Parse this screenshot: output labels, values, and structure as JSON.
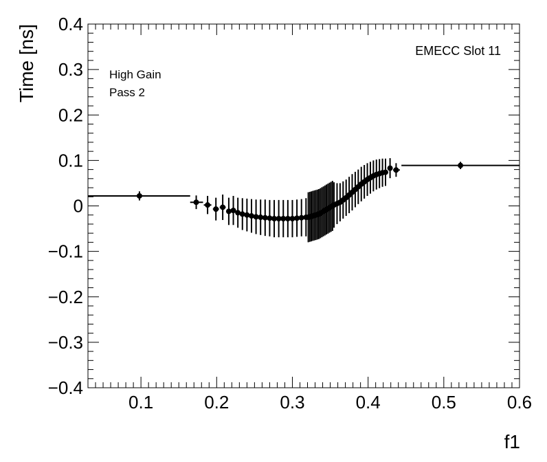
{
  "chart_data": {
    "type": "scatter",
    "xlabel": "f1",
    "ylabel": "Time [ns]",
    "xlim": [
      0.03,
      0.6
    ],
    "ylim": [
      -0.4,
      0.4
    ],
    "x_ticks": [
      0.1,
      0.2,
      0.3,
      0.4,
      0.5,
      0.6
    ],
    "x_tick_labels": [
      "0.1",
      "0.2",
      "0.3",
      "0.4",
      "0.5",
      "0.6"
    ],
    "y_ticks": [
      -0.4,
      -0.3,
      -0.2,
      -0.1,
      0,
      0.1,
      0.2,
      0.3,
      0.4
    ],
    "y_tick_labels": [
      "−0.4",
      "−0.3",
      "−0.2",
      "−0.1",
      "0",
      "0.1",
      "0.2",
      "0.3",
      "0.4"
    ],
    "annotations": [
      "High Gain",
      "Pass 2"
    ],
    "label_right": "EMECC Slot 11",
    "grid": false,
    "marker_color": "#000000",
    "points": [
      {
        "x": 0.098,
        "y": 0.022,
        "ey": 0.01,
        "xlo": 0.03,
        "xhi": 0.165
      },
      {
        "x": 0.173,
        "y": 0.008,
        "ey": 0.015,
        "xlo": 0.165,
        "xhi": 0.182
      },
      {
        "x": 0.188,
        "y": 0.002,
        "ey": 0.02,
        "xlo": 0.183,
        "xhi": 0.193
      },
      {
        "x": 0.199,
        "y": -0.007,
        "ey": 0.025,
        "xlo": 0.195,
        "xhi": 0.203
      },
      {
        "x": 0.208,
        "y": -0.003,
        "ey": 0.028,
        "xlo": 0.204,
        "xhi": 0.212
      },
      {
        "x": 0.216,
        "y": -0.012,
        "ey": 0.03,
        "xlo": 0.213,
        "xhi": 0.219
      },
      {
        "x": 0.222,
        "y": -0.01,
        "ey": 0.032,
        "xlo": 0.22,
        "xhi": 0.225
      },
      {
        "x": 0.228,
        "y": -0.015,
        "ey": 0.033,
        "xlo": 0.226,
        "xhi": 0.231
      },
      {
        "x": 0.234,
        "y": -0.018,
        "ey": 0.035,
        "xlo": 0.232,
        "xhi": 0.237
      },
      {
        "x": 0.24,
        "y": -0.02,
        "ey": 0.036,
        "xlo": 0.238,
        "xhi": 0.243
      },
      {
        "x": 0.246,
        "y": -0.022,
        "ey": 0.037,
        "xlo": 0.244,
        "xhi": 0.249
      },
      {
        "x": 0.252,
        "y": -0.024,
        "ey": 0.038,
        "xlo": 0.25,
        "xhi": 0.255
      },
      {
        "x": 0.258,
        "y": -0.025,
        "ey": 0.039,
        "xlo": 0.256,
        "xhi": 0.261
      },
      {
        "x": 0.264,
        "y": -0.026,
        "ey": 0.04,
        "xlo": 0.262,
        "xhi": 0.267
      },
      {
        "x": 0.27,
        "y": -0.027,
        "ey": 0.04,
        "xlo": 0.268,
        "xhi": 0.273
      },
      {
        "x": 0.276,
        "y": -0.028,
        "ey": 0.041,
        "xlo": 0.274,
        "xhi": 0.279
      },
      {
        "x": 0.282,
        "y": -0.028,
        "ey": 0.041,
        "xlo": 0.28,
        "xhi": 0.285
      },
      {
        "x": 0.288,
        "y": -0.028,
        "ey": 0.041,
        "xlo": 0.286,
        "xhi": 0.291
      },
      {
        "x": 0.294,
        "y": -0.028,
        "ey": 0.041,
        "xlo": 0.292,
        "xhi": 0.297
      },
      {
        "x": 0.3,
        "y": -0.028,
        "ey": 0.041,
        "xlo": 0.298,
        "xhi": 0.303
      },
      {
        "x": 0.306,
        "y": -0.027,
        "ey": 0.041,
        "xlo": 0.304,
        "xhi": 0.309
      },
      {
        "x": 0.312,
        "y": -0.026,
        "ey": 0.041,
        "xlo": 0.31,
        "xhi": 0.315
      },
      {
        "x": 0.318,
        "y": -0.025,
        "ey": 0.042,
        "xlo": 0.316,
        "xhi": 0.32
      },
      {
        "x": 0.321,
        "y": -0.025,
        "ey": 0.055,
        "xlo": 0.32,
        "xhi": 0.322
      },
      {
        "x": 0.323,
        "y": -0.024,
        "ey": 0.055,
        "xlo": 0.322,
        "xhi": 0.324
      },
      {
        "x": 0.325,
        "y": -0.023,
        "ey": 0.055,
        "xlo": 0.324,
        "xhi": 0.326
      },
      {
        "x": 0.327,
        "y": -0.022,
        "ey": 0.055,
        "xlo": 0.326,
        "xhi": 0.328
      },
      {
        "x": 0.329,
        "y": -0.021,
        "ey": 0.055,
        "xlo": 0.328,
        "xhi": 0.33
      },
      {
        "x": 0.331,
        "y": -0.02,
        "ey": 0.055,
        "xlo": 0.33,
        "xhi": 0.332
      },
      {
        "x": 0.333,
        "y": -0.019,
        "ey": 0.055,
        "xlo": 0.332,
        "xhi": 0.334
      },
      {
        "x": 0.335,
        "y": -0.018,
        "ey": 0.055,
        "xlo": 0.334,
        "xhi": 0.336
      },
      {
        "x": 0.337,
        "y": -0.016,
        "ey": 0.055,
        "xlo": 0.336,
        "xhi": 0.338
      },
      {
        "x": 0.339,
        "y": -0.014,
        "ey": 0.055,
        "xlo": 0.338,
        "xhi": 0.34
      },
      {
        "x": 0.341,
        "y": -0.012,
        "ey": 0.055,
        "xlo": 0.34,
        "xhi": 0.342
      },
      {
        "x": 0.343,
        "y": -0.01,
        "ey": 0.055,
        "xlo": 0.342,
        "xhi": 0.344
      },
      {
        "x": 0.345,
        "y": -0.008,
        "ey": 0.055,
        "xlo": 0.344,
        "xhi": 0.346
      },
      {
        "x": 0.347,
        "y": -0.006,
        "ey": 0.055,
        "xlo": 0.346,
        "xhi": 0.348
      },
      {
        "x": 0.349,
        "y": -0.004,
        "ey": 0.055,
        "xlo": 0.348,
        "xhi": 0.35
      },
      {
        "x": 0.351,
        "y": -0.002,
        "ey": 0.055,
        "xlo": 0.35,
        "xhi": 0.352
      },
      {
        "x": 0.353,
        "y": 0.0,
        "ey": 0.055,
        "xlo": 0.352,
        "xhi": 0.354
      },
      {
        "x": 0.355,
        "y": 0.002,
        "ey": 0.05,
        "xlo": 0.354,
        "xhi": 0.357
      },
      {
        "x": 0.359,
        "y": 0.005,
        "ey": 0.045,
        "xlo": 0.357,
        "xhi": 0.361
      },
      {
        "x": 0.363,
        "y": 0.008,
        "ey": 0.042,
        "xlo": 0.361,
        "xhi": 0.365
      },
      {
        "x": 0.367,
        "y": 0.013,
        "ey": 0.041,
        "xlo": 0.365,
        "xhi": 0.369
      },
      {
        "x": 0.371,
        "y": 0.018,
        "ey": 0.04,
        "xlo": 0.369,
        "xhi": 0.373
      },
      {
        "x": 0.375,
        "y": 0.024,
        "ey": 0.04,
        "xlo": 0.373,
        "xhi": 0.377
      },
      {
        "x": 0.379,
        "y": 0.03,
        "ey": 0.04,
        "xlo": 0.377,
        "xhi": 0.381
      },
      {
        "x": 0.383,
        "y": 0.036,
        "ey": 0.039,
        "xlo": 0.381,
        "xhi": 0.385
      },
      {
        "x": 0.387,
        "y": 0.042,
        "ey": 0.038,
        "xlo": 0.385,
        "xhi": 0.389
      },
      {
        "x": 0.391,
        "y": 0.048,
        "ey": 0.038,
        "xlo": 0.389,
        "xhi": 0.393
      },
      {
        "x": 0.395,
        "y": 0.053,
        "ey": 0.037,
        "xlo": 0.393,
        "xhi": 0.397
      },
      {
        "x": 0.399,
        "y": 0.058,
        "ey": 0.036,
        "xlo": 0.397,
        "xhi": 0.401
      },
      {
        "x": 0.403,
        "y": 0.062,
        "ey": 0.035,
        "xlo": 0.401,
        "xhi": 0.405
      },
      {
        "x": 0.407,
        "y": 0.066,
        "ey": 0.034,
        "xlo": 0.405,
        "xhi": 0.409
      },
      {
        "x": 0.411,
        "y": 0.069,
        "ey": 0.033,
        "xlo": 0.409,
        "xhi": 0.413
      },
      {
        "x": 0.415,
        "y": 0.071,
        "ey": 0.032,
        "xlo": 0.413,
        "xhi": 0.417
      },
      {
        "x": 0.419,
        "y": 0.073,
        "ey": 0.031,
        "xlo": 0.417,
        "xhi": 0.421
      },
      {
        "x": 0.423,
        "y": 0.074,
        "ey": 0.03,
        "xlo": 0.421,
        "xhi": 0.425
      },
      {
        "x": 0.429,
        "y": 0.083,
        "ey": 0.022,
        "xlo": 0.426,
        "xhi": 0.432
      },
      {
        "x": 0.437,
        "y": 0.079,
        "ey": 0.015,
        "xlo": 0.433,
        "xhi": 0.442
      },
      {
        "x": 0.522,
        "y": 0.089,
        "ey": 0.008,
        "xlo": 0.444,
        "xhi": 0.6
      }
    ]
  }
}
